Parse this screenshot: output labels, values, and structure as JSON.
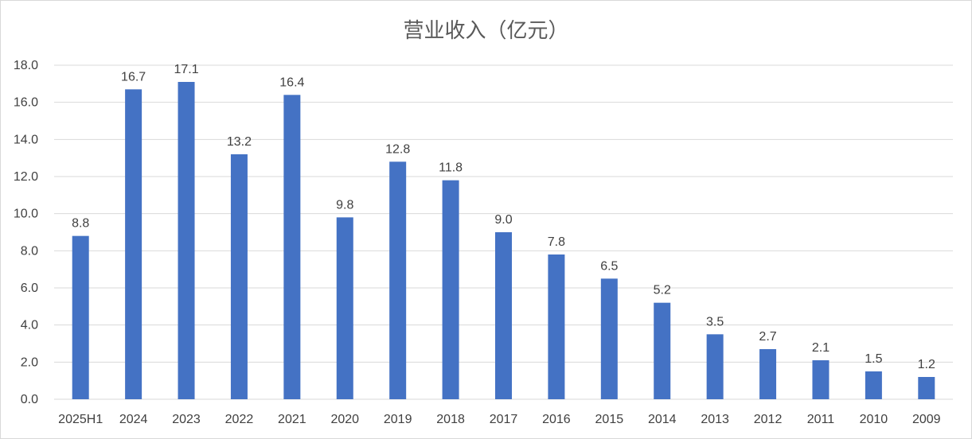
{
  "chart_data": {
    "type": "bar",
    "title": "营业收入（亿元）",
    "categories": [
      "2025H1",
      "2024",
      "2023",
      "2022",
      "2021",
      "2020",
      "2019",
      "2018",
      "2017",
      "2016",
      "2015",
      "2014",
      "2013",
      "2012",
      "2011",
      "2010",
      "2009"
    ],
    "values": [
      8.8,
      16.7,
      17.1,
      13.2,
      16.4,
      9.8,
      12.8,
      11.8,
      9.0,
      7.8,
      6.5,
      5.2,
      3.5,
      2.7,
      2.1,
      1.5,
      1.2
    ],
    "value_labels": [
      "8.8",
      "16.7",
      "17.1",
      "13.2",
      "16.4",
      "9.8",
      "12.8",
      "11.8",
      "9.0",
      "7.8",
      "6.5",
      "5.2",
      "3.5",
      "2.7",
      "2.1",
      "1.5",
      "1.2"
    ],
    "ylim": [
      0,
      18
    ],
    "yticks": [
      "0.0",
      "2.0",
      "4.0",
      "6.0",
      "8.0",
      "10.0",
      "12.0",
      "14.0",
      "16.0",
      "18.0"
    ],
    "xlabel": "",
    "ylabel": "",
    "grid": true,
    "legend": "none",
    "bar_color": "#4472C4",
    "grid_color": "#d9d9d9"
  }
}
